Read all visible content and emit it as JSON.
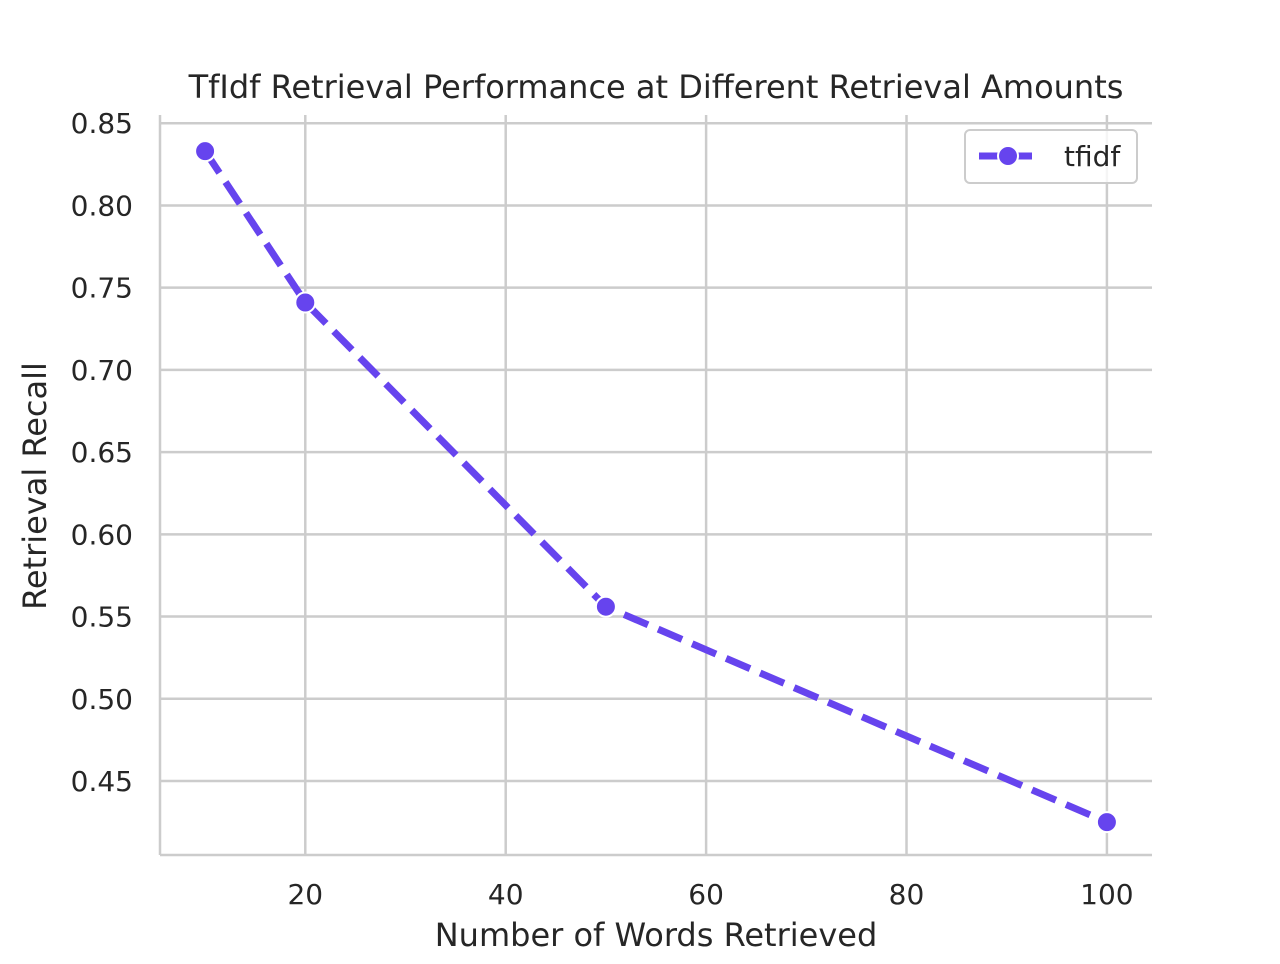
{
  "chart_data": {
    "type": "line",
    "title": "TfIdf Retrieval Performance at Different Retrieval Amounts",
    "xlabel": "Number of Words Retrieved",
    "ylabel": "Retrieval Recall",
    "xlim": [
      5.5,
      104.5
    ],
    "ylim": [
      0.405,
      0.855
    ],
    "xticks": [
      20,
      40,
      60,
      80,
      100
    ],
    "xtick_labels": [
      "20",
      "40",
      "60",
      "80",
      "100"
    ],
    "yticks": [
      0.45,
      0.5,
      0.55,
      0.6,
      0.65,
      0.7,
      0.75,
      0.8,
      0.85
    ],
    "ytick_labels": [
      "0.45",
      "0.50",
      "0.55",
      "0.60",
      "0.65",
      "0.70",
      "0.75",
      "0.80",
      "0.85"
    ],
    "grid": true,
    "legend_position": "top-right",
    "series": [
      {
        "name": "tfidf",
        "color": "#6644ee",
        "line_style": "dashed",
        "marker": "circle",
        "x": [
          10,
          20,
          50,
          100
        ],
        "y": [
          0.833,
          0.741,
          0.556,
          0.425
        ]
      }
    ]
  }
}
